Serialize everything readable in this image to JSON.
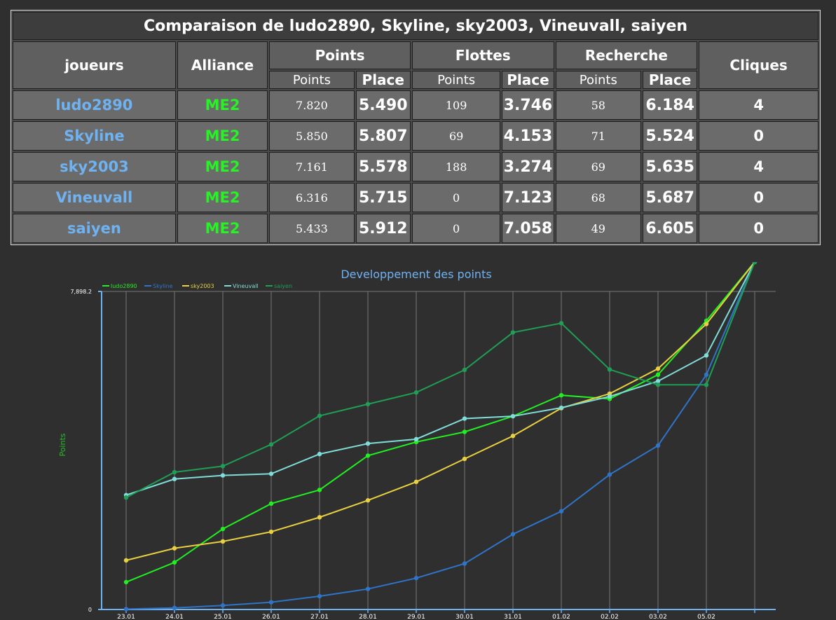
{
  "table": {
    "title": "Comparaison de ludo2890, Skyline, sky2003, Vineuvall, saiyen",
    "headers": {
      "players": "joueurs",
      "alliance": "Alliance",
      "points": "Points",
      "fleets": "Flottes",
      "research": "Recherche",
      "clicks": "Cliques"
    },
    "sub": {
      "points": "Points",
      "place": "Place"
    },
    "rows": [
      {
        "name": "ludo2890",
        "alliance": "ME2",
        "points": "7.820",
        "points_place": "5.490",
        "fleets": "109",
        "fleets_place": "3.746",
        "research": "58",
        "research_place": "6.184",
        "clicks": "4"
      },
      {
        "name": "Skyline",
        "alliance": "ME2",
        "points": "5.850",
        "points_place": "5.807",
        "fleets": "69",
        "fleets_place": "4.153",
        "research": "71",
        "research_place": "5.524",
        "clicks": "0"
      },
      {
        "name": "sky2003",
        "alliance": "ME2",
        "points": "7.161",
        "points_place": "5.578",
        "fleets": "188",
        "fleets_place": "3.274",
        "research": "69",
        "research_place": "5.635",
        "clicks": "4"
      },
      {
        "name": "Vineuvall",
        "alliance": "ME2",
        "points": "6.316",
        "points_place": "5.715",
        "fleets": "0",
        "fleets_place": "7.123",
        "research": "68",
        "research_place": "5.687",
        "clicks": "0"
      },
      {
        "name": "saiyen",
        "alliance": "ME2",
        "points": "5.433",
        "points_place": "5.912",
        "fleets": "0",
        "fleets_place": "7.058",
        "research": "49",
        "research_place": "6.605",
        "clicks": "0"
      }
    ]
  },
  "chart_data": {
    "type": "line",
    "title": "Developpement des points",
    "ylabel": "Points",
    "xlabel": "",
    "ylim": [
      0,
      7898.2
    ],
    "y_ticks": [
      "0",
      "7,898.2"
    ],
    "categories": [
      "23.01",
      "24.01",
      "25.01",
      "26.01",
      "27.01",
      "28.01",
      "29.01",
      "30.01",
      "31.01",
      "01.02",
      "02.02",
      "03.02",
      "05.02",
      ""
    ],
    "grid": true,
    "legend_position": "top-left",
    "series": [
      {
        "name": "ludo2890",
        "color": "#22ee22",
        "values": [
          680,
          1170,
          2000,
          2630,
          2970,
          3820,
          4160,
          4410,
          4800,
          5320,
          5230,
          5830,
          7170,
          8630
        ]
      },
      {
        "name": "Skyline",
        "color": "#2f74c9",
        "values": [
          10,
          40,
          100,
          180,
          330,
          510,
          780,
          1140,
          1870,
          2440,
          3350,
          4070,
          5830,
          8630
        ]
      },
      {
        "name": "sky2003",
        "color": "#e8d040",
        "values": [
          1220,
          1520,
          1690,
          1930,
          2290,
          2710,
          3170,
          3740,
          4310,
          5000,
          5360,
          5980,
          7090,
          8630
        ]
      },
      {
        "name": "Vineuvall",
        "color": "#80dcd8",
        "values": [
          2840,
          3240,
          3330,
          3370,
          3860,
          4120,
          4230,
          4740,
          4800,
          5010,
          5290,
          5670,
          6310,
          8630
        ]
      },
      {
        "name": "saiyen",
        "color": "#1f9e56",
        "values": [
          2780,
          3410,
          3560,
          4100,
          4810,
          5100,
          5390,
          5950,
          6880,
          7110,
          5960,
          5580,
          5580,
          8630
        ]
      }
    ]
  }
}
